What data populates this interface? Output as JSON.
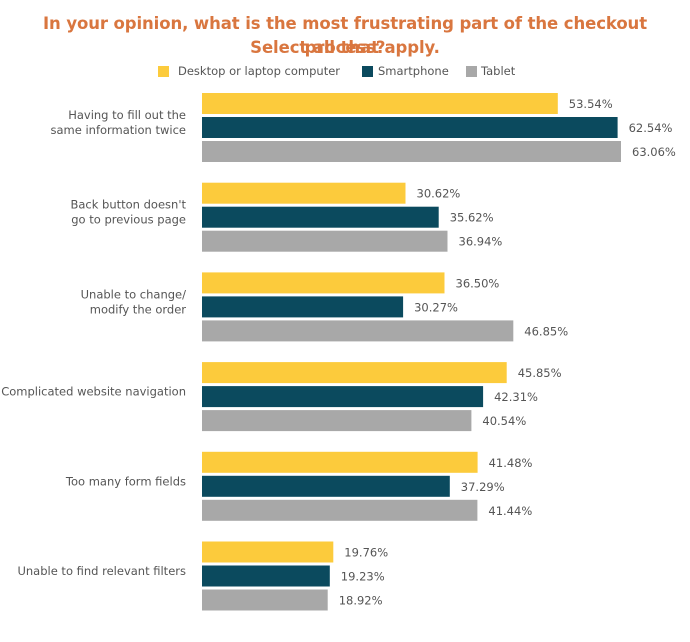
{
  "chart_data": {
    "type": "bar",
    "orientation": "horizontal",
    "title": "In your opinion, what is the most frustrating part of the checkout process?",
    "subtitle": "Select all that apply.",
    "xlabel": "",
    "ylabel": "",
    "grid": false,
    "legend_position": "top-center",
    "value_format": "percent",
    "categories": [
      [
        "Having to fill out the",
        "same information twice"
      ],
      [
        "Back button doesn't",
        "go to previous page"
      ],
      [
        "Unable to change/",
        "modify the order"
      ],
      [
        "Complicated website navigation"
      ],
      [
        "Too many form fields"
      ],
      [
        "Unable to find relevant filters"
      ]
    ],
    "series": [
      {
        "name": "Desktop or laptop computer",
        "color": "#fccb3c",
        "values": [
          53.54,
          30.62,
          36.5,
          45.85,
          41.48,
          19.76
        ],
        "labels": [
          "53.54%",
          "30.62%",
          "36.50%",
          "45.85%",
          "41.48%",
          "19.76%"
        ]
      },
      {
        "name": "Smartphone",
        "color": "#0b4a5e",
        "values": [
          62.54,
          35.62,
          30.27,
          42.31,
          37.29,
          19.23
        ],
        "labels": [
          "62.54%",
          "35.62%",
          "30.27%",
          "42.31%",
          "37.29%",
          "19.23%"
        ]
      },
      {
        "name": "Tablet",
        "color": "#a8a8a8",
        "values": [
          63.06,
          36.94,
          46.85,
          40.54,
          41.44,
          18.92
        ],
        "labels": [
          "63.06%",
          "36.94%",
          "46.85%",
          "40.54%",
          "41.44%",
          "18.92%"
        ]
      }
    ]
  }
}
